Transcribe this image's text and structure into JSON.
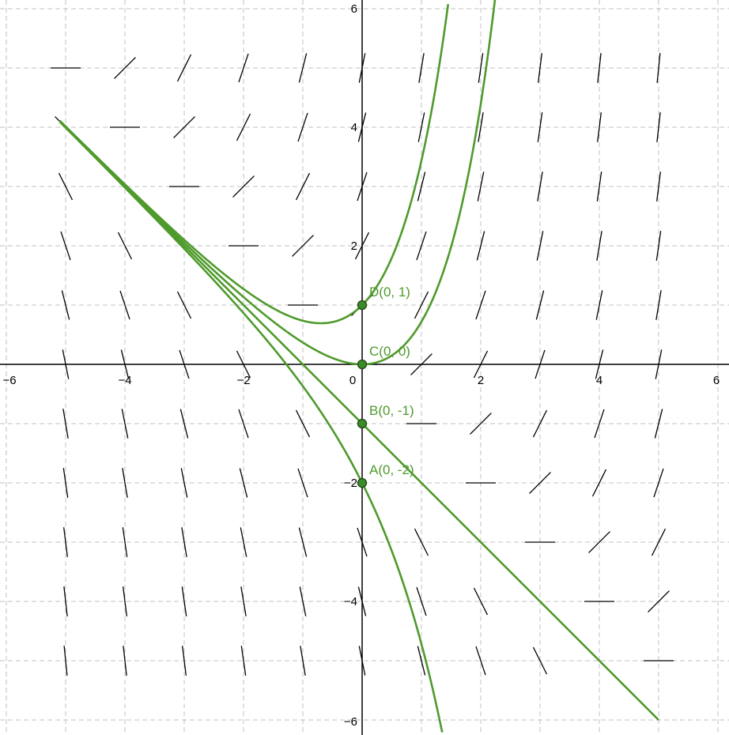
{
  "chart_data": {
    "type": "line",
    "description_equation": "dy/dx = x + y",
    "xlim": [
      -6.1,
      6.2
    ],
    "ylim": [
      -6.1,
      6.1
    ],
    "grid": true,
    "x_ticks": [
      -6,
      -4,
      -2,
      0,
      2,
      4,
      6
    ],
    "y_ticks": [
      -6,
      -4,
      -2,
      2,
      4,
      6
    ],
    "x_tick_labels": [
      "−6",
      "−4",
      "−2",
      "0",
      "2",
      "4",
      "6"
    ],
    "y_tick_labels": [
      "−6",
      "−4",
      "−2",
      "2",
      "4",
      "6"
    ],
    "slope_field": {
      "x_values": [
        -5,
        -4,
        -3,
        -2,
        -1,
        0,
        1,
        2,
        3,
        4,
        5
      ],
      "y_values": [
        -5,
        -4,
        -3,
        -2,
        -1,
        0,
        1,
        2,
        3,
        4,
        5
      ]
    },
    "series": [
      {
        "initial_x": 0,
        "initial_y": -2,
        "x_range": [
          -5.1,
          1.35
        ]
      },
      {
        "initial_x": 0,
        "initial_y": -1,
        "x_range": [
          -5.1,
          5.0
        ]
      },
      {
        "initial_x": 0,
        "initial_y": 0,
        "x_range": [
          -5.1,
          2.25
        ]
      },
      {
        "initial_x": 0,
        "initial_y": 1,
        "x_range": [
          -5.1,
          1.45
        ]
      }
    ],
    "points": [
      {
        "label": "A(0, -2)",
        "x": 0,
        "y": -2
      },
      {
        "label": "B(0, -1)",
        "x": 0,
        "y": -1
      },
      {
        "label": "C(0, 0)",
        "x": 0,
        "y": 0
      },
      {
        "label": "D(0, 1)",
        "x": 0,
        "y": 1
      }
    ],
    "colors": {
      "curve": "#4f9a2c",
      "point_fill": "#3d8a2a",
      "grid": "#c0c0c0",
      "axes": "#000000"
    }
  }
}
